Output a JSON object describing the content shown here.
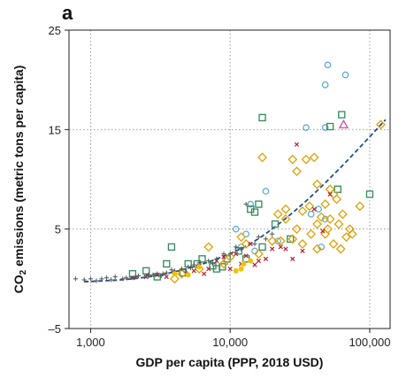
{
  "panel": {
    "label": "a"
  },
  "chart_data": {
    "type": "scatter",
    "title": "",
    "xlabel": "GDP per capita (PPP, 2018 USD)",
    "ylabel_parts": {
      "prefix": "CO",
      "subscript": "2",
      "suffix": " emissions (metric tons per capita)"
    },
    "xscale": "log",
    "xlim": [
      700,
      140000
    ],
    "ylim": [
      -5,
      25
    ],
    "xticks": [
      1000,
      10000,
      100000
    ],
    "xtick_labels": [
      "1,000",
      "10,000",
      "100,000"
    ],
    "yticks": [
      -5,
      5,
      15,
      25
    ],
    "ytick_labels": [
      "–5",
      "5",
      "15",
      "25"
    ],
    "grid": true,
    "grid_style": "dotted",
    "colors": {
      "circle": "#5aa6d6",
      "square": "#2e8b57",
      "diamond": "#e0a000",
      "cross": "#b22234",
      "plus": "#555555",
      "dot": "#f2c200",
      "triangle": "#c94f9e",
      "trend": "#1f4e8c"
    },
    "series": [
      {
        "marker": "circle",
        "points": [
          [
            50000,
            21.5
          ],
          [
            48000,
            19.5
          ],
          [
            67000,
            20.5
          ],
          [
            35000,
            15.2
          ],
          [
            48000,
            15.2
          ],
          [
            18000,
            8.8
          ],
          [
            14000,
            7.5
          ],
          [
            38000,
            6.5
          ],
          [
            43000,
            7
          ],
          [
            48000,
            6
          ],
          [
            11000,
            5
          ],
          [
            13000,
            4.5
          ],
          [
            22000,
            3.8
          ],
          [
            45000,
            3.2
          ],
          [
            12000,
            3.2
          ],
          [
            15000,
            2.8
          ]
        ]
      },
      {
        "marker": "square",
        "points": [
          [
            17000,
            16.2
          ],
          [
            63000,
            16.5
          ],
          [
            52000,
            15.3
          ],
          [
            59000,
            9
          ],
          [
            100000,
            8.5
          ],
          [
            14000,
            7
          ],
          [
            16000,
            7.5
          ],
          [
            15000,
            6.7
          ],
          [
            21000,
            5.5
          ],
          [
            27000,
            4
          ],
          [
            3800,
            3.2
          ],
          [
            5000,
            1.5
          ],
          [
            9500,
            2
          ],
          [
            11500,
            2.8
          ],
          [
            17000,
            3.2
          ],
          [
            3500,
            1.5
          ],
          [
            6300,
            2
          ],
          [
            7500,
            1.3
          ],
          [
            2000,
            0.5
          ],
          [
            2500,
            0.8
          ],
          [
            3000,
            0.2
          ],
          [
            4600,
            0.6
          ],
          [
            8800,
            1.2
          ],
          [
            13000,
            2
          ],
          [
            5800,
            1.5
          ],
          [
            8000,
            1
          ]
        ]
      },
      {
        "marker": "diamond",
        "points": [
          [
            120000,
            15.5
          ],
          [
            17000,
            12.2
          ],
          [
            28000,
            12
          ],
          [
            35000,
            12
          ],
          [
            40000,
            12.2
          ],
          [
            30000,
            10.8
          ],
          [
            42000,
            9.5
          ],
          [
            52000,
            9
          ],
          [
            55000,
            8.5
          ],
          [
            58000,
            8
          ],
          [
            48000,
            7.5
          ],
          [
            37000,
            7.3
          ],
          [
            25000,
            7
          ],
          [
            45000,
            6.2
          ],
          [
            52000,
            6
          ],
          [
            60000,
            5.5
          ],
          [
            72000,
            5
          ],
          [
            85000,
            7.3
          ],
          [
            22000,
            6.5
          ],
          [
            30000,
            5
          ],
          [
            38000,
            4.5
          ],
          [
            48000,
            4.5
          ],
          [
            55000,
            3.5
          ],
          [
            62000,
            3
          ],
          [
            68000,
            4.2
          ],
          [
            28000,
            4
          ],
          [
            33000,
            3.5
          ],
          [
            42000,
            3
          ],
          [
            13000,
            3.5
          ],
          [
            12000,
            4.2
          ],
          [
            7000,
            3.2
          ],
          [
            20000,
            3.8
          ],
          [
            16000,
            2.5
          ],
          [
            10000,
            2.2
          ],
          [
            6000,
            1
          ],
          [
            9000,
            1.5
          ],
          [
            4500,
            0.5
          ],
          [
            4000,
            0
          ],
          [
            25000,
            6
          ],
          [
            42000,
            5.5
          ],
          [
            50000,
            5
          ],
          [
            64000,
            6.5
          ],
          [
            75000,
            4.5
          ],
          [
            33000,
            6.8
          ],
          [
            23000,
            3.8
          ]
        ]
      },
      {
        "marker": "cross",
        "points": [
          [
            30000,
            13.5
          ],
          [
            40000,
            7
          ],
          [
            46000,
            4.8
          ],
          [
            52000,
            8.5
          ],
          [
            23000,
            3.2
          ],
          [
            14000,
            3.5
          ],
          [
            11000,
            2.5
          ],
          [
            9000,
            2.2
          ],
          [
            8000,
            1.8
          ],
          [
            7000,
            1
          ],
          [
            5500,
            0.8
          ],
          [
            6000,
            1.3
          ],
          [
            4000,
            0.6
          ],
          [
            3000,
            0.4
          ],
          [
            3500,
            0.2
          ],
          [
            25000,
            3
          ],
          [
            18000,
            2
          ],
          [
            12000,
            1.5
          ],
          [
            16000,
            1.8
          ],
          [
            10000,
            1
          ],
          [
            20000,
            3
          ],
          [
            33000,
            2.8
          ],
          [
            28000,
            2
          ],
          [
            13000,
            2.3
          ],
          [
            15000,
            1.4
          ],
          [
            6500,
            0.5
          ],
          [
            2500,
            0.2
          ],
          [
            2000,
            0.1
          ]
        ]
      },
      {
        "marker": "plus",
        "points": [
          [
            780,
            0
          ],
          [
            900,
            -0.1
          ],
          [
            1000,
            0
          ],
          [
            1100,
            -0.2
          ],
          [
            1200,
            0
          ],
          [
            1300,
            0.1
          ],
          [
            1400,
            -0.1
          ],
          [
            1500,
            0.2
          ],
          [
            1700,
            0
          ],
          [
            1800,
            0.1
          ],
          [
            2000,
            0.1
          ],
          [
            2200,
            0.3
          ],
          [
            2500,
            0.3
          ],
          [
            2800,
            0.4
          ],
          [
            3000,
            0.5
          ],
          [
            3300,
            0.5
          ],
          [
            3500,
            0.6
          ],
          [
            4000,
            0.8
          ],
          [
            4500,
            1
          ],
          [
            5000,
            1.2
          ],
          [
            5500,
            1.4
          ],
          [
            6000,
            1.6
          ],
          [
            7000,
            1.8
          ],
          [
            8000,
            2
          ],
          [
            9000,
            2.5
          ],
          [
            10000,
            2.5
          ],
          [
            12000,
            3
          ],
          [
            13000,
            7.5
          ],
          [
            15000,
            3.5
          ],
          [
            18000,
            4
          ],
          [
            20000,
            4.5
          ],
          [
            2100,
            0.2
          ],
          [
            2600,
            0.4
          ],
          [
            3200,
            0.3
          ],
          [
            3800,
            0.9
          ],
          [
            4800,
            0.7
          ],
          [
            5200,
            1.1
          ],
          [
            7500,
            1.5
          ],
          [
            11000,
            3.2
          ],
          [
            16000,
            4.2
          ]
        ]
      },
      {
        "marker": "dot",
        "points": [
          [
            12000,
            1
          ],
          [
            12500,
            1.5
          ],
          [
            5000,
            0.4
          ],
          [
            4000,
            0.5
          ],
          [
            11000,
            0.8
          ],
          [
            6000,
            1.2
          ],
          [
            14000,
            1.8
          ]
        ]
      },
      {
        "marker": "triangle",
        "points": [
          [
            65000,
            15.5
          ]
        ]
      }
    ],
    "trend": {
      "style": "dashed",
      "points": [
        [
          900,
          -0.3
        ],
        [
          2000,
          0
        ],
        [
          4000,
          0.7
        ],
        [
          8000,
          2
        ],
        [
          15000,
          3.8
        ],
        [
          30000,
          7
        ],
        [
          60000,
          11
        ],
        [
          130000,
          16
        ]
      ]
    }
  }
}
